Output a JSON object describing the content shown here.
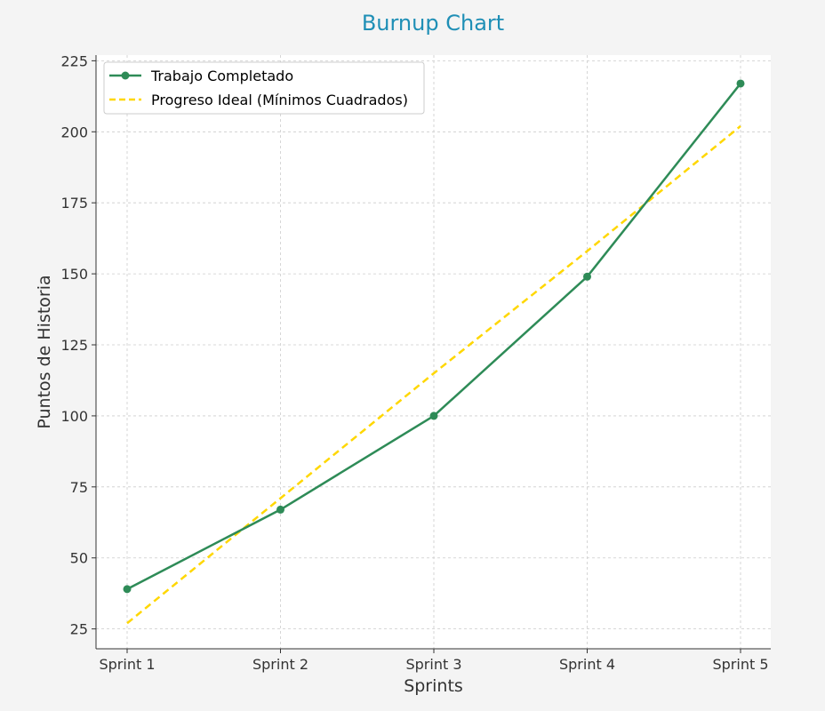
{
  "chart_data": {
    "type": "line",
    "title": "Burnup Chart",
    "xlabel": "Sprints",
    "ylabel": "Puntos de Historia",
    "categories": [
      "Sprint 1",
      "Sprint 2",
      "Sprint 3",
      "Sprint 4",
      "Sprint 5"
    ],
    "ylim": [
      18,
      227
    ],
    "yticks": [
      25,
      50,
      75,
      100,
      125,
      150,
      175,
      200,
      225
    ],
    "grid": true,
    "legend_position": "top-left",
    "series": [
      {
        "name": "Trabajo Completado",
        "values": [
          39,
          67,
          100,
          149,
          217
        ],
        "style": "solid",
        "marker": "circle",
        "color": "#2e8b57"
      },
      {
        "name": "Progreso Ideal (Mínimos Cuadrados)",
        "values": [
          27,
          71,
          115,
          158,
          202
        ],
        "style": "dashed",
        "marker": "none",
        "color": "#ffd700"
      }
    ],
    "colors": {
      "title": "#1f8fb6",
      "background": "#f4f4f4",
      "plot_background": "#ffffff",
      "grid": "#cccccc",
      "axis": "#333333"
    }
  }
}
